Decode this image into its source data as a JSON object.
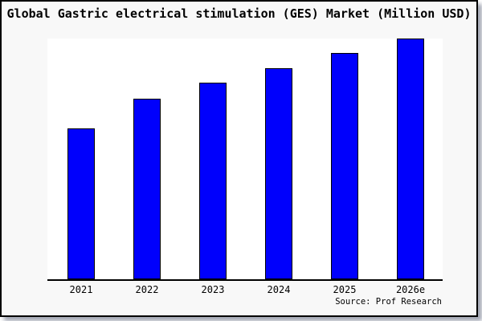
{
  "window": {
    "title": "Global Gastric electrical stimulation (GES) Market (Million USD)"
  },
  "chart_data": {
    "type": "bar",
    "title": "Global Gastric electrical stimulation (GES) Market (Million USD)",
    "categories": [
      "2021",
      "2022",
      "2023",
      "2024",
      "2025",
      "2026e"
    ],
    "values": [
      62.7,
      75.0,
      81.7,
      87.7,
      94.0,
      100.0
    ],
    "values_note": "relative units; y-axis has no ticks or labels, values normalized so 2026e = 100",
    "xlabel": "",
    "ylabel": "",
    "ylim": [
      0,
      100.7
    ],
    "gridlines": false,
    "legend": "none",
    "bar_color": "#0000fc",
    "bar_border_color": "#000000",
    "source_note": "Source: Prof Research"
  },
  "colors": {
    "figure_background": "#f8f8f8",
    "plot_background": "#ffffff",
    "frame_border": "#000000",
    "title_text": "#000000",
    "axis_line": "#000000"
  }
}
